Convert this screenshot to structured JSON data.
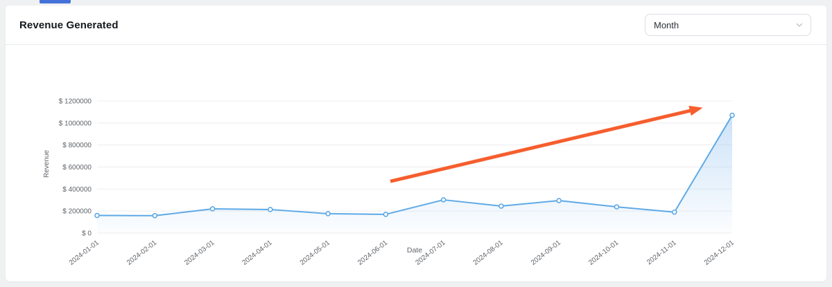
{
  "header": {
    "title": "Revenue Generated"
  },
  "controls": {
    "period_select": {
      "value": "Month"
    }
  },
  "colors": {
    "accent_blue": "#5ea9e6",
    "area_fill": "#8fc1ee",
    "arrow_orange": "#f65e2e",
    "grid": "#ededf1",
    "axis_text": "#5f6368",
    "top_strip": "#4472d8"
  },
  "chart_data": {
    "type": "line",
    "title": "Revenue Generated",
    "xlabel": "Date",
    "ylabel": "Revenue",
    "categories": [
      "2024-01-01",
      "2024-02-01",
      "2024-03-01",
      "2024-04-01",
      "2024-05-01",
      "2024-06-01",
      "2024-07-01",
      "2024-08-01",
      "2024-09-01",
      "2024-10-01",
      "2024-11-01",
      "2024-12-01"
    ],
    "series": [
      {
        "name": "Revenue",
        "values": [
          160000,
          158000,
          220000,
          214000,
          176000,
          170000,
          302000,
          245000,
          295000,
          238000,
          190000,
          1070000
        ]
      }
    ],
    "ylim": [
      0,
      1200000
    ],
    "y_ticks": [
      0,
      200000,
      400000,
      600000,
      800000,
      1000000,
      1200000
    ],
    "y_tick_prefix": "$ ",
    "grid": "horizontal",
    "legend": "none",
    "annotations": [
      {
        "type": "arrow",
        "label": "upward-trend",
        "from": {
          "x_index": 5.08,
          "y": 470000
        },
        "to": {
          "x_index": 10.42,
          "y": 1130000
        },
        "color": "#f65e2e"
      }
    ]
  }
}
